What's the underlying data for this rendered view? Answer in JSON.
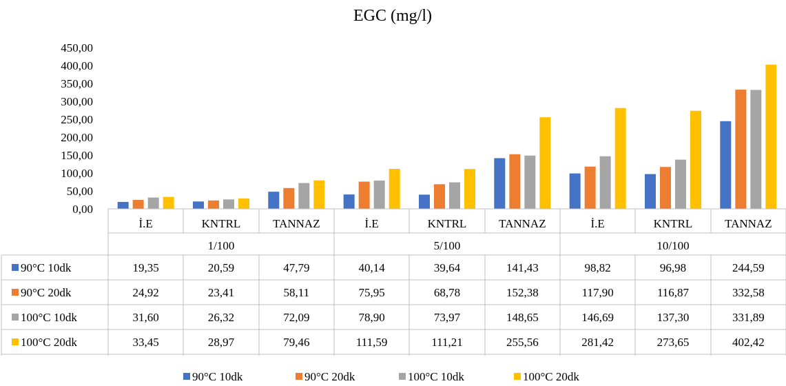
{
  "chart_data": {
    "type": "bar",
    "title": "EGC (mg/l)",
    "groups": [
      {
        "label": "1/100",
        "categories": [
          "İ.E",
          "KNTRL",
          "TANNAZ"
        ]
      },
      {
        "label": "5/100",
        "categories": [
          "İ.E",
          "KNTRL",
          "TANNAZ"
        ]
      },
      {
        "label": "10/100",
        "categories": [
          "İ.E",
          "KNTRL",
          "TANNAZ"
        ]
      }
    ],
    "series": [
      {
        "name": "90°C 10dk",
        "color": "#4472C4",
        "values": [
          19.35,
          20.59,
          47.79,
          40.14,
          39.64,
          141.43,
          98.82,
          96.98,
          244.59
        ],
        "labels": [
          "19,35",
          "20,59",
          "47,79",
          "40,14",
          "39,64",
          "141,43",
          "98,82",
          "96,98",
          "244,59"
        ]
      },
      {
        "name": "90°C 20dk",
        "color": "#ED7D31",
        "values": [
          24.92,
          23.41,
          58.11,
          75.95,
          68.78,
          152.38,
          117.9,
          116.87,
          332.58
        ],
        "labels": [
          "24,92",
          "23,41",
          "58,11",
          "75,95",
          "68,78",
          "152,38",
          "117,90",
          "116,87",
          "332,58"
        ]
      },
      {
        "name": "100°C 10dk",
        "color": "#A5A5A5",
        "values": [
          31.6,
          26.32,
          72.09,
          78.9,
          73.97,
          148.65,
          146.69,
          137.3,
          331.89
        ],
        "labels": [
          "31,60",
          "26,32",
          "72,09",
          "78,90",
          "73,97",
          "148,65",
          "146,69",
          "137,30",
          "331,89"
        ]
      },
      {
        "name": "100°C 20dk",
        "color": "#FFC000",
        "values": [
          33.45,
          28.97,
          79.46,
          111.59,
          111.21,
          255.56,
          281.42,
          273.65,
          402.42
        ],
        "labels": [
          "33,45",
          "28,97",
          "79,46",
          "111,59",
          "111,21",
          "255,56",
          "281,42",
          "273,65",
          "402,42"
        ]
      }
    ],
    "ylim": [
      0,
      450
    ],
    "yticks": [
      0,
      50,
      100,
      150,
      200,
      250,
      300,
      350,
      400,
      450
    ],
    "ytick_labels": [
      "0,00",
      "50,00",
      "100,00",
      "150,00",
      "200,00",
      "250,00",
      "300,00",
      "350,00",
      "400,00",
      "450,00"
    ],
    "grid": false,
    "legend_position": "bottom",
    "data_table": true
  }
}
